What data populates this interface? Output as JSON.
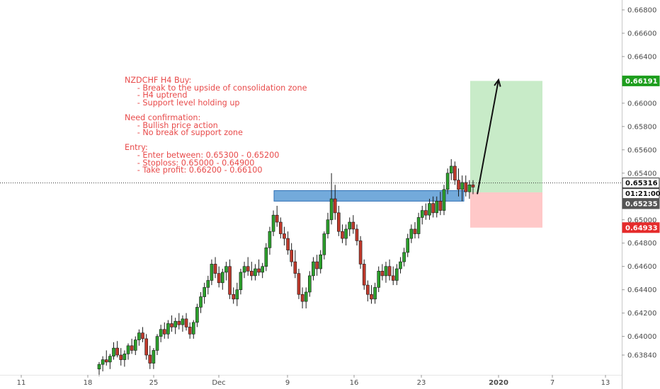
{
  "annotation": {
    "lines": [
      "NZDCHF H4 Buy:",
      "     - Break to the upside of consolidation zone",
      "     - H4 uptrend",
      "     - Support level holding up",
      "",
      "Need confirmation:",
      "     - Bullish price action",
      "     - No break of support zone",
      "",
      "Entry:",
      "     - Enter between: 0.65300 - 0.65200",
      "     - Stoploss: 0.65000 - 0.64900",
      "     - Take profit: 0.66200 - 0.66100"
    ]
  },
  "colors": {
    "bull": "#26a69a",
    "bull_body": "#2ca02c",
    "bear": "#c0392b",
    "zone": "#5b9bd5",
    "profit": "#c8ebc8",
    "loss": "#ffc8c8",
    "tp_tag": "#1e9e1e",
    "sl_tag": "#e52b2b",
    "price_tag": "#ffffff",
    "entry_tag": "#555555"
  },
  "chart_data": {
    "type": "candlestick",
    "instrument": "NZDCHF",
    "timeframe": "H4",
    "x_ticks": [
      "11",
      "18",
      "25",
      "Dec",
      "9",
      "16",
      "23",
      "2020",
      "7",
      "13"
    ],
    "y_ticks": [
      "0.66800",
      "0.66600",
      "0.66400",
      "0.66200",
      "0.66000",
      "0.65800",
      "0.65600",
      "0.65400",
      "0.65200",
      "0.65000",
      "0.64800",
      "0.64600",
      "0.64400",
      "0.64200",
      "0.64000",
      "0.63840"
    ],
    "y_tick_values": [
      0.668,
      0.666,
      0.664,
      0.662,
      0.66,
      0.658,
      0.656,
      0.654,
      0.652,
      0.65,
      0.648,
      0.646,
      0.644,
      0.642,
      0.64,
      0.6384
    ],
    "ylim": [
      0.6376,
      0.6696
    ],
    "price_tags": {
      "take_profit": {
        "label": "0.66191",
        "value": 0.66191
      },
      "current": {
        "label": "0.65316",
        "value": 0.65316
      },
      "countdown": {
        "label": "01:21:00"
      },
      "entry": {
        "label": "0.65235",
        "value": 0.65235
      },
      "stop_loss": {
        "label": "0.64933",
        "value": 0.64933
      }
    },
    "consolidation_zone": {
      "low": 0.6516,
      "high": 0.6525
    },
    "position": {
      "entry": 0.65235,
      "take_profit": 0.66191,
      "stop_loss": 0.64933
    },
    "trend_points": [
      0.6522,
      0.662
    ],
    "candles": [
      {
        "o": 0.6372,
        "h": 0.6378,
        "l": 0.6366,
        "c": 0.6376
      },
      {
        "o": 0.6376,
        "h": 0.6383,
        "l": 0.637,
        "c": 0.638
      },
      {
        "o": 0.638,
        "h": 0.6388,
        "l": 0.6375,
        "c": 0.6378
      },
      {
        "o": 0.6378,
        "h": 0.6385,
        "l": 0.6372,
        "c": 0.6383
      },
      {
        "o": 0.6383,
        "h": 0.6395,
        "l": 0.638,
        "c": 0.639
      },
      {
        "o": 0.639,
        "h": 0.6396,
        "l": 0.6382,
        "c": 0.6384
      },
      {
        "o": 0.6384,
        "h": 0.639,
        "l": 0.6375,
        "c": 0.638
      },
      {
        "o": 0.638,
        "h": 0.6388,
        "l": 0.6374,
        "c": 0.6385
      },
      {
        "o": 0.6385,
        "h": 0.6394,
        "l": 0.638,
        "c": 0.6392
      },
      {
        "o": 0.6392,
        "h": 0.6398,
        "l": 0.6385,
        "c": 0.6388
      },
      {
        "o": 0.6388,
        "h": 0.64,
        "l": 0.6384,
        "c": 0.6397
      },
      {
        "o": 0.6397,
        "h": 0.6406,
        "l": 0.6392,
        "c": 0.6403
      },
      {
        "o": 0.6403,
        "h": 0.6408,
        "l": 0.6395,
        "c": 0.6398
      },
      {
        "o": 0.6398,
        "h": 0.6402,
        "l": 0.638,
        "c": 0.6384
      },
      {
        "o": 0.6384,
        "h": 0.6392,
        "l": 0.6372,
        "c": 0.6377
      },
      {
        "o": 0.6377,
        "h": 0.639,
        "l": 0.6372,
        "c": 0.6388
      },
      {
        "o": 0.6388,
        "h": 0.6402,
        "l": 0.6384,
        "c": 0.64
      },
      {
        "o": 0.64,
        "h": 0.641,
        "l": 0.6395,
        "c": 0.6406
      },
      {
        "o": 0.6406,
        "h": 0.6412,
        "l": 0.6398,
        "c": 0.6402
      },
      {
        "o": 0.6402,
        "h": 0.6414,
        "l": 0.6398,
        "c": 0.6411
      },
      {
        "o": 0.6411,
        "h": 0.6418,
        "l": 0.6404,
        "c": 0.6408
      },
      {
        "o": 0.6408,
        "h": 0.6416,
        "l": 0.6402,
        "c": 0.6413
      },
      {
        "o": 0.6413,
        "h": 0.642,
        "l": 0.6406,
        "c": 0.641
      },
      {
        "o": 0.641,
        "h": 0.6418,
        "l": 0.6404,
        "c": 0.6415
      },
      {
        "o": 0.6415,
        "h": 0.642,
        "l": 0.6405,
        "c": 0.6408
      },
      {
        "o": 0.6408,
        "h": 0.6412,
        "l": 0.6398,
        "c": 0.6402
      },
      {
        "o": 0.6402,
        "h": 0.6414,
        "l": 0.6398,
        "c": 0.6412
      },
      {
        "o": 0.6412,
        "h": 0.6428,
        "l": 0.6408,
        "c": 0.6425
      },
      {
        "o": 0.6425,
        "h": 0.6438,
        "l": 0.642,
        "c": 0.6434
      },
      {
        "o": 0.6434,
        "h": 0.6446,
        "l": 0.6428,
        "c": 0.6442
      },
      {
        "o": 0.6442,
        "h": 0.6452,
        "l": 0.6436,
        "c": 0.6448
      },
      {
        "o": 0.6448,
        "h": 0.6466,
        "l": 0.6444,
        "c": 0.6462
      },
      {
        "o": 0.6462,
        "h": 0.6468,
        "l": 0.645,
        "c": 0.6454
      },
      {
        "o": 0.6454,
        "h": 0.646,
        "l": 0.6442,
        "c": 0.6446
      },
      {
        "o": 0.6446,
        "h": 0.6458,
        "l": 0.644,
        "c": 0.6455
      },
      {
        "o": 0.6455,
        "h": 0.6464,
        "l": 0.6448,
        "c": 0.646
      },
      {
        "o": 0.646,
        "h": 0.6466,
        "l": 0.6432,
        "c": 0.6436
      },
      {
        "o": 0.6436,
        "h": 0.6442,
        "l": 0.6428,
        "c": 0.6432
      },
      {
        "o": 0.6432,
        "h": 0.6446,
        "l": 0.6426,
        "c": 0.644
      },
      {
        "o": 0.644,
        "h": 0.6458,
        "l": 0.6436,
        "c": 0.6455
      },
      {
        "o": 0.6455,
        "h": 0.6464,
        "l": 0.645,
        "c": 0.646
      },
      {
        "o": 0.646,
        "h": 0.6468,
        "l": 0.6452,
        "c": 0.6456
      },
      {
        "o": 0.6456,
        "h": 0.6464,
        "l": 0.6448,
        "c": 0.6452
      },
      {
        "o": 0.6452,
        "h": 0.6462,
        "l": 0.6448,
        "c": 0.6458
      },
      {
        "o": 0.6458,
        "h": 0.6466,
        "l": 0.6452,
        "c": 0.6455
      },
      {
        "o": 0.6455,
        "h": 0.6463,
        "l": 0.645,
        "c": 0.646
      },
      {
        "o": 0.646,
        "h": 0.648,
        "l": 0.6456,
        "c": 0.6476
      },
      {
        "o": 0.6476,
        "h": 0.6494,
        "l": 0.647,
        "c": 0.649
      },
      {
        "o": 0.649,
        "h": 0.6508,
        "l": 0.6486,
        "c": 0.6504
      },
      {
        "o": 0.6504,
        "h": 0.6512,
        "l": 0.6494,
        "c": 0.6498
      },
      {
        "o": 0.6498,
        "h": 0.6502,
        "l": 0.6484,
        "c": 0.6488
      },
      {
        "o": 0.6488,
        "h": 0.6494,
        "l": 0.6478,
        "c": 0.6484
      },
      {
        "o": 0.6484,
        "h": 0.649,
        "l": 0.647,
        "c": 0.6474
      },
      {
        "o": 0.6474,
        "h": 0.648,
        "l": 0.646,
        "c": 0.6464
      },
      {
        "o": 0.6464,
        "h": 0.6474,
        "l": 0.645,
        "c": 0.6454
      },
      {
        "o": 0.6454,
        "h": 0.6458,
        "l": 0.6432,
        "c": 0.6436
      },
      {
        "o": 0.6436,
        "h": 0.6442,
        "l": 0.6424,
        "c": 0.643
      },
      {
        "o": 0.643,
        "h": 0.6442,
        "l": 0.6424,
        "c": 0.6438
      },
      {
        "o": 0.6438,
        "h": 0.6456,
        "l": 0.6434,
        "c": 0.6452
      },
      {
        "o": 0.6452,
        "h": 0.6468,
        "l": 0.6448,
        "c": 0.6464
      },
      {
        "o": 0.6464,
        "h": 0.647,
        "l": 0.6452,
        "c": 0.6458
      },
      {
        "o": 0.6458,
        "h": 0.6474,
        "l": 0.6454,
        "c": 0.647
      },
      {
        "o": 0.647,
        "h": 0.649,
        "l": 0.6466,
        "c": 0.6488
      },
      {
        "o": 0.6488,
        "h": 0.6506,
        "l": 0.6484,
        "c": 0.65
      },
      {
        "o": 0.65,
        "h": 0.654,
        "l": 0.6496,
        "c": 0.6518
      },
      {
        "o": 0.6518,
        "h": 0.653,
        "l": 0.65,
        "c": 0.6506
      },
      {
        "o": 0.6506,
        "h": 0.6512,
        "l": 0.6486,
        "c": 0.649
      },
      {
        "o": 0.649,
        "h": 0.6496,
        "l": 0.648,
        "c": 0.6484
      },
      {
        "o": 0.6484,
        "h": 0.6496,
        "l": 0.6478,
        "c": 0.6492
      },
      {
        "o": 0.6492,
        "h": 0.6502,
        "l": 0.6486,
        "c": 0.6498
      },
      {
        "o": 0.6498,
        "h": 0.6504,
        "l": 0.6488,
        "c": 0.6492
      },
      {
        "o": 0.6492,
        "h": 0.6496,
        "l": 0.6478,
        "c": 0.6482
      },
      {
        "o": 0.6482,
        "h": 0.6486,
        "l": 0.6458,
        "c": 0.6462
      },
      {
        "o": 0.6462,
        "h": 0.6466,
        "l": 0.644,
        "c": 0.6444
      },
      {
        "o": 0.6444,
        "h": 0.6448,
        "l": 0.643,
        "c": 0.6436
      },
      {
        "o": 0.6436,
        "h": 0.6444,
        "l": 0.6428,
        "c": 0.6432
      },
      {
        "o": 0.6432,
        "h": 0.6446,
        "l": 0.6428,
        "c": 0.6442
      },
      {
        "o": 0.6442,
        "h": 0.646,
        "l": 0.6438,
        "c": 0.6456
      },
      {
        "o": 0.6456,
        "h": 0.6462,
        "l": 0.6448,
        "c": 0.6452
      },
      {
        "o": 0.6452,
        "h": 0.6464,
        "l": 0.6446,
        "c": 0.646
      },
      {
        "o": 0.646,
        "h": 0.6466,
        "l": 0.6448,
        "c": 0.6452
      },
      {
        "o": 0.6452,
        "h": 0.646,
        "l": 0.6444,
        "c": 0.6448
      },
      {
        "o": 0.6448,
        "h": 0.6462,
        "l": 0.6444,
        "c": 0.6458
      },
      {
        "o": 0.6458,
        "h": 0.6468,
        "l": 0.6454,
        "c": 0.6464
      },
      {
        "o": 0.6464,
        "h": 0.6476,
        "l": 0.646,
        "c": 0.6472
      },
      {
        "o": 0.6472,
        "h": 0.6488,
        "l": 0.6468,
        "c": 0.6484
      },
      {
        "o": 0.6484,
        "h": 0.6496,
        "l": 0.648,
        "c": 0.6492
      },
      {
        "o": 0.6492,
        "h": 0.6498,
        "l": 0.6484,
        "c": 0.6488
      },
      {
        "o": 0.6488,
        "h": 0.6506,
        "l": 0.6484,
        "c": 0.6502
      },
      {
        "o": 0.6502,
        "h": 0.6512,
        "l": 0.6496,
        "c": 0.6508
      },
      {
        "o": 0.6508,
        "h": 0.6514,
        "l": 0.65,
        "c": 0.6504
      },
      {
        "o": 0.6504,
        "h": 0.6518,
        "l": 0.65,
        "c": 0.6514
      },
      {
        "o": 0.6514,
        "h": 0.652,
        "l": 0.6502,
        "c": 0.6506
      },
      {
        "o": 0.6506,
        "h": 0.652,
        "l": 0.6502,
        "c": 0.6516
      },
      {
        "o": 0.6516,
        "h": 0.6524,
        "l": 0.6504,
        "c": 0.6508
      },
      {
        "o": 0.6508,
        "h": 0.653,
        "l": 0.6504,
        "c": 0.6526
      },
      {
        "o": 0.6526,
        "h": 0.6544,
        "l": 0.6522,
        "c": 0.654
      },
      {
        "o": 0.654,
        "h": 0.6552,
        "l": 0.6534,
        "c": 0.6546
      },
      {
        "o": 0.6546,
        "h": 0.655,
        "l": 0.653,
        "c": 0.6534
      },
      {
        "o": 0.6534,
        "h": 0.6544,
        "l": 0.652,
        "c": 0.6526
      },
      {
        "o": 0.6526,
        "h": 0.6538,
        "l": 0.6516,
        "c": 0.6532
      },
      {
        "o": 0.6532,
        "h": 0.6538,
        "l": 0.652,
        "c": 0.6524
      },
      {
        "o": 0.6524,
        "h": 0.6534,
        "l": 0.6518,
        "c": 0.653
      },
      {
        "o": 0.653,
        "h": 0.6534,
        "l": 0.6522,
        "c": 0.6528
      }
    ]
  }
}
